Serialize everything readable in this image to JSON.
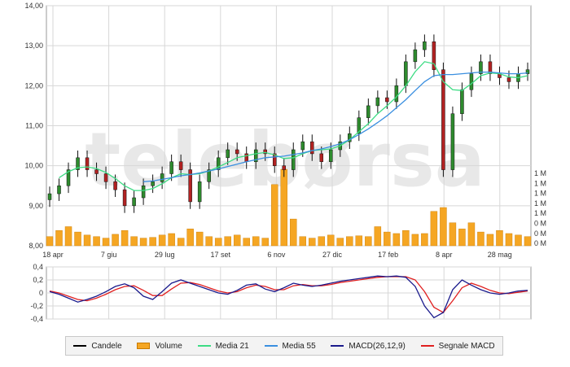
{
  "watermark": "telebørsa",
  "chart_data": [
    {
      "type": "line",
      "title": "",
      "ylim": [
        8.0,
        14.0
      ],
      "y_ticks": [
        "14,00",
        "13,00",
        "12,00",
        "11,00",
        "10,00",
        "9,00",
        "8,00"
      ],
      "x_tick_labels": [
        "18 apr",
        "7 giu",
        "29 lug",
        "17 set",
        "6 nov",
        "27 dic",
        "17 feb",
        "8 apr",
        "28 mag"
      ],
      "volume_axis_labels": [
        "1 M",
        "1 M",
        "1 M",
        "1 M",
        "1 M",
        "0 M",
        "0 M",
        "0 M"
      ],
      "grid": true,
      "series": [
        {
          "name": "Candele",
          "values": [
            9.3,
            9.5,
            9.9,
            10.2,
            9.9,
            9.8,
            9.6,
            9.4,
            9.0,
            9.2,
            9.5,
            9.6,
            9.8,
            10.1,
            9.9,
            9.1,
            9.6,
            9.9,
            10.2,
            10.4,
            10.3,
            10.1,
            10.4,
            10.3,
            10.0,
            9.9,
            10.4,
            10.6,
            10.3,
            10.1,
            10.4,
            10.6,
            10.8,
            11.2,
            11.5,
            11.7,
            11.6,
            12.0,
            12.6,
            12.9,
            13.1,
            12.4,
            9.9,
            11.3,
            11.9,
            12.3,
            12.6,
            12.3,
            12.2,
            12.1,
            12.3,
            12.4
          ]
        },
        {
          "name": "Media 21",
          "values": [
            null,
            9.7,
            9.85,
            9.95,
            9.97,
            9.93,
            9.83,
            9.68,
            9.5,
            9.38,
            9.38,
            9.43,
            9.55,
            9.7,
            9.8,
            9.78,
            9.8,
            9.87,
            9.97,
            10.08,
            10.2,
            10.25,
            10.3,
            10.33,
            10.27,
            10.18,
            10.2,
            10.3,
            10.38,
            10.4,
            10.42,
            10.5,
            10.65,
            10.85,
            11.05,
            11.3,
            11.5,
            11.72,
            12.0,
            12.35,
            12.6,
            12.55,
            12.1,
            11.9,
            11.88,
            12.05,
            12.25,
            12.32,
            12.3,
            12.22,
            12.2,
            12.25
          ]
        },
        {
          "name": "Media 55",
          "values": [
            null,
            null,
            null,
            null,
            null,
            null,
            null,
            null,
            null,
            null,
            9.6,
            9.62,
            9.66,
            9.7,
            9.75,
            9.78,
            9.82,
            9.87,
            9.92,
            9.98,
            10.04,
            10.1,
            10.15,
            10.2,
            10.22,
            10.24,
            10.28,
            10.32,
            10.38,
            10.42,
            10.48,
            10.55,
            10.65,
            10.78,
            10.92,
            11.08,
            11.25,
            11.45,
            11.65,
            11.88,
            12.1,
            12.25,
            12.28,
            12.28,
            12.3,
            12.32,
            12.34,
            12.34,
            12.32,
            12.3,
            12.3,
            12.32
          ]
        }
      ]
    },
    {
      "type": "bar",
      "series_name": "Volume",
      "note": "scala volume in milioni (0-1 M)",
      "values": [
        0.12,
        0.2,
        0.25,
        0.18,
        0.14,
        0.12,
        0.1,
        0.15,
        0.2,
        0.12,
        0.1,
        0.11,
        0.14,
        0.16,
        0.1,
        0.22,
        0.18,
        0.12,
        0.1,
        0.12,
        0.14,
        0.1,
        0.12,
        0.1,
        0.8,
        1.0,
        0.35,
        0.12,
        0.1,
        0.12,
        0.14,
        0.1,
        0.12,
        0.13,
        0.12,
        0.25,
        0.18,
        0.16,
        0.2,
        0.15,
        0.16,
        0.45,
        0.5,
        0.3,
        0.22,
        0.3,
        0.18,
        0.15,
        0.2,
        0.16,
        0.14,
        0.12
      ]
    },
    {
      "type": "line",
      "ylim": [
        -0.4,
        0.4
      ],
      "y_ticks": [
        "0,4",
        "0,2",
        "0",
        "-0,2",
        "-0,4"
      ],
      "series": [
        {
          "name": "MACD(26,12,9)",
          "values": [
            0.02,
            -0.02,
            -0.08,
            -0.14,
            -0.1,
            -0.05,
            0.02,
            0.1,
            0.14,
            0.08,
            -0.05,
            -0.1,
            0.02,
            0.15,
            0.2,
            0.15,
            0.1,
            0.05,
            0.0,
            -0.02,
            0.04,
            0.12,
            0.14,
            0.06,
            0.02,
            0.08,
            0.15,
            0.12,
            0.1,
            0.12,
            0.15,
            0.18,
            0.2,
            0.22,
            0.24,
            0.26,
            0.25,
            0.26,
            0.24,
            0.1,
            -0.2,
            -0.38,
            -0.3,
            0.05,
            0.2,
            0.12,
            0.05,
            0.0,
            -0.02,
            0.0,
            0.03,
            0.04
          ]
        },
        {
          "name": "Segnale MACD",
          "values": [
            0.03,
            0.0,
            -0.05,
            -0.1,
            -0.12,
            -0.08,
            -0.02,
            0.05,
            0.1,
            0.11,
            0.04,
            -0.04,
            -0.04,
            0.06,
            0.15,
            0.16,
            0.13,
            0.08,
            0.03,
            0.0,
            0.02,
            0.08,
            0.12,
            0.1,
            0.05,
            0.05,
            0.11,
            0.13,
            0.11,
            0.11,
            0.13,
            0.16,
            0.18,
            0.2,
            0.22,
            0.24,
            0.25,
            0.25,
            0.25,
            0.2,
            0.02,
            -0.22,
            -0.3,
            -0.12,
            0.08,
            0.15,
            0.1,
            0.04,
            0.0,
            -0.01,
            0.01,
            0.03
          ]
        }
      ]
    }
  ],
  "legend": [
    {
      "label": "Candele",
      "color": "#000000",
      "kind": "line"
    },
    {
      "label": "Volume",
      "color": "#f5a623",
      "kind": "box"
    },
    {
      "label": "Media 21",
      "color": "#3ddc84",
      "kind": "line"
    },
    {
      "label": "Media 55",
      "color": "#3a8fe0",
      "kind": "line"
    },
    {
      "label": "MACD(26,12,9)",
      "color": "#1a1a8c",
      "kind": "line"
    },
    {
      "label": "Segnale MACD",
      "color": "#e02020",
      "kind": "line"
    }
  ],
  "colors": {
    "candles_up": "#2e8b2e",
    "candles_down": "#b22222",
    "volume": "#f5a623",
    "media21": "#3ddc84",
    "media55": "#3a8fe0",
    "macd": "#1a1a8c",
    "signal": "#e02020",
    "grid": "#d7d7d7"
  }
}
